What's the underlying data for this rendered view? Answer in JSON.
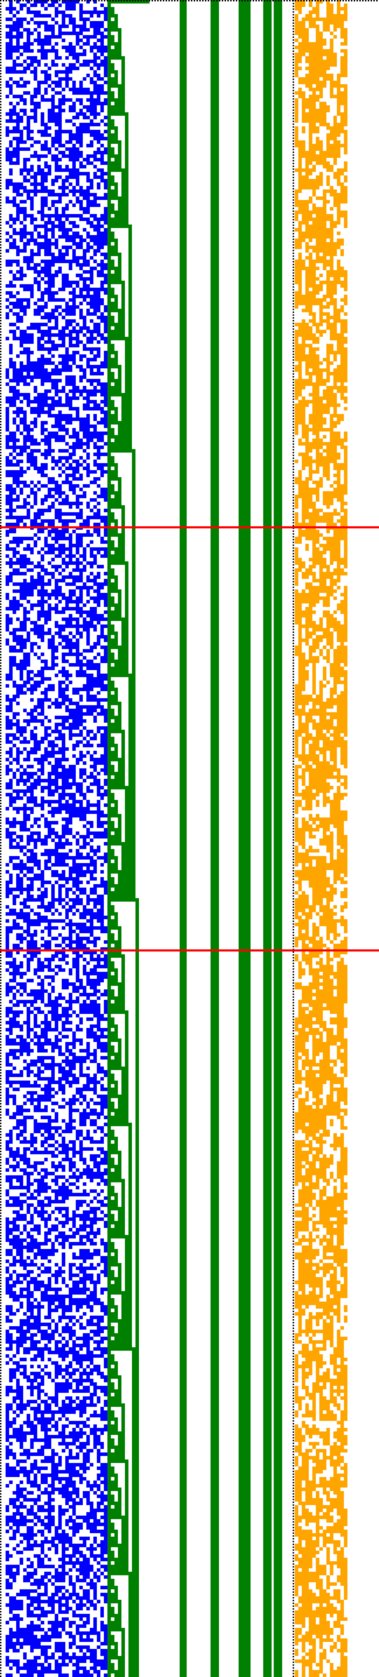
{
  "palette": {
    "background": "#ffffff",
    "left_block": "#0000ff",
    "middle_block": "#008000",
    "right_block": "#ffa500",
    "marker_lines": "#ff0000",
    "border_dots": "#000000"
  },
  "grid": {
    "columns": 4,
    "left_cols": 29,
    "stair_cols": 12,
    "stripe_cols": 8,
    "right_cols": 15,
    "rows": 478
  },
  "stripes": {
    "green_duty": [
      1,
      0,
      0,
      1,
      0,
      1,
      1,
      0
    ]
  },
  "density": {
    "left_fill": 0.55,
    "right_fill": 0.62
  },
  "markers": {
    "rows": [
      0.314,
      0.566
    ]
  },
  "border": {
    "style": "dotted",
    "edges": [
      "top",
      "left",
      "right-of-stripes"
    ]
  }
}
